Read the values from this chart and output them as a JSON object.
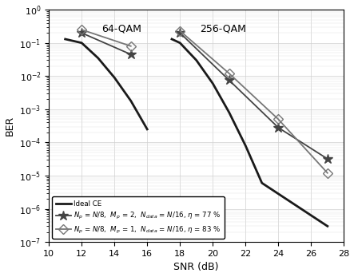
{
  "xlabel": "SNR (dB)",
  "ylabel": "BER",
  "xlim": [
    10,
    28
  ],
  "ylim_log": [
    -7,
    0
  ],
  "snr_64_ideal": [
    11.0,
    12.0,
    13.0,
    14.0,
    15.0,
    16.0
  ],
  "ber_64_ideal": [
    0.13,
    0.1,
    0.035,
    0.009,
    0.0018,
    0.00025
  ],
  "snr_64_star": [
    12.0,
    15.0
  ],
  "ber_64_star": [
    0.2,
    0.045
  ],
  "snr_64_diamond": [
    12.0,
    15.0
  ],
  "ber_64_diamond": [
    0.25,
    0.08
  ],
  "snr_256_ideal": [
    17.5,
    18.0,
    19.0,
    20.0,
    21.0,
    22.0,
    23.0,
    27.0
  ],
  "ber_256_ideal": [
    0.13,
    0.1,
    0.03,
    0.006,
    0.0008,
    8e-05,
    6e-06,
    3e-07
  ],
  "snr_256_star": [
    18.0,
    21.0,
    24.0,
    27.0
  ],
  "ber_256_star": [
    0.2,
    0.0075,
    0.00028,
    3.2e-05
  ],
  "snr_256_diamond": [
    18.0,
    21.0,
    24.0,
    27.0
  ],
  "ber_256_diamond": [
    0.23,
    0.012,
    0.0005,
    1.2e-05
  ],
  "color_ideal": "#1a1a1a",
  "color_star": "#444444",
  "color_diamond": "#777777",
  "lw_ideal": 2.0,
  "lw_series": 1.3,
  "legend_label_ideal": "Ideal CE",
  "legend_label_star": "$N_p$ = $N$/8,  $M_p$ = 2,  $N_{data}$ = $N$/16, $\\eta$ = 77 %",
  "legend_label_diamond": "$N_p$ = $N$/8,  $M_p$ = 1,  $N_{data}$ = $N$/16, $\\eta$ = 83 %",
  "ann_64": "64-QAM",
  "ann_256": "256-QAM",
  "xticks": [
    10,
    12,
    14,
    16,
    18,
    20,
    22,
    24,
    26,
    28
  ]
}
